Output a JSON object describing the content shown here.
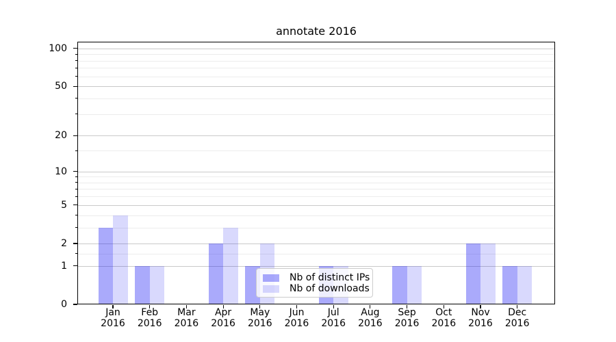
{
  "chart_data": {
    "type": "bar",
    "title": "annotate 2016",
    "scale": "log1p",
    "ylim": [
      0,
      113
    ],
    "categories": [
      "Jan 2016",
      "Feb 2016",
      "Mar 2016",
      "Apr 2016",
      "May 2016",
      "Jun 2016",
      "Jul 2016",
      "Aug 2016",
      "Sep 2016",
      "Oct 2016",
      "Nov 2016",
      "Dec 2016"
    ],
    "series": [
      {
        "name": "Nb of distinct IPs",
        "color": "rgba(20,20,245,0.36)",
        "values": [
          3,
          1,
          0,
          2,
          1,
          0,
          1,
          0,
          1,
          0,
          2,
          1
        ]
      },
      {
        "name": "Nb of downloads",
        "color": "rgba(20,20,245,0.16)",
        "values": [
          4,
          1,
          0,
          3,
          2,
          0,
          1,
          0,
          1,
          0,
          2,
          1
        ]
      }
    ],
    "yticks_major": [
      0,
      1,
      2,
      5,
      10,
      20,
      50,
      100
    ],
    "yticks_minor": [
      1.5,
      3,
      4,
      6,
      7,
      8,
      9,
      15,
      30,
      40,
      60,
      70,
      80,
      90
    ],
    "grid": {
      "major_color": "#c9c9c9",
      "minor_color": "#ececec"
    },
    "axis_color": "#000000",
    "legend": {
      "background": "rgba(255,255,255,0.8)",
      "border_color": "#cccccc",
      "position": "lower center"
    }
  }
}
